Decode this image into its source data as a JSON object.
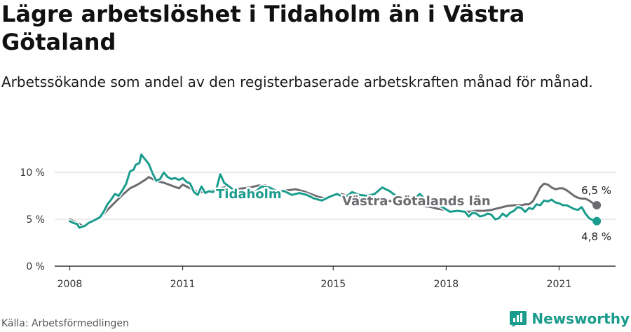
{
  "title": "Lägre arbetslöshet i Tidaholm än i Västra Götaland",
  "subtitle": "Arbetssökande som andel av den registerbaserade arbetskraften månad för månad.",
  "source": "Källa: Arbetsförmedlingen",
  "brand": "Newsworthy",
  "colors": {
    "tidaholm": "#1a9c8d",
    "vastra": "#6b6b70",
    "grid": "#dddddd",
    "axis": "#333333"
  },
  "chart_data": {
    "type": "line",
    "xlim": [
      2007.6,
      2022.5
    ],
    "ylim": [
      0,
      13
    ],
    "yticks": [
      0,
      5,
      10
    ],
    "ytick_labels": [
      "0 %",
      "5 %",
      "10 %"
    ],
    "xticks": [
      2008,
      2011,
      2015,
      2018,
      2021
    ],
    "xtick_labels": [
      "2008",
      "2011",
      "2015",
      "2018",
      "2021"
    ],
    "grid": "horizontal",
    "series": [
      {
        "name": "Tidaholm",
        "color": "#1a9c8d",
        "end_label": "4,8 %",
        "points": [
          [
            2008.0,
            4.8
          ],
          [
            2008.1,
            4.6
          ],
          [
            2008.2,
            4.5
          ],
          [
            2008.25,
            4.1
          ],
          [
            2008.4,
            4.3
          ],
          [
            2008.5,
            4.6
          ],
          [
            2008.6,
            4.8
          ],
          [
            2008.8,
            5.2
          ],
          [
            2008.9,
            5.8
          ],
          [
            2009.0,
            6.6
          ],
          [
            2009.1,
            7.1
          ],
          [
            2009.2,
            7.7
          ],
          [
            2009.3,
            7.5
          ],
          [
            2009.4,
            8.1
          ],
          [
            2009.5,
            8.8
          ],
          [
            2009.6,
            10.1
          ],
          [
            2009.7,
            10.3
          ],
          [
            2009.75,
            10.8
          ],
          [
            2009.85,
            11.0
          ],
          [
            2009.9,
            11.9
          ],
          [
            2010.0,
            11.4
          ],
          [
            2010.1,
            10.9
          ],
          [
            2010.2,
            9.9
          ],
          [
            2010.3,
            9.1
          ],
          [
            2010.4,
            9.3
          ],
          [
            2010.5,
            10.0
          ],
          [
            2010.6,
            9.5
          ],
          [
            2010.7,
            9.3
          ],
          [
            2010.8,
            9.4
          ],
          [
            2010.9,
            9.2
          ],
          [
            2011.0,
            9.4
          ],
          [
            2011.1,
            9.0
          ],
          [
            2011.2,
            8.8
          ],
          [
            2011.3,
            7.9
          ],
          [
            2011.4,
            7.6
          ],
          [
            2011.5,
            8.5
          ],
          [
            2011.6,
            7.8
          ],
          [
            2011.7,
            8.0
          ],
          [
            2011.8,
            7.9
          ],
          [
            2011.9,
            8.3
          ],
          [
            2012.0,
            9.8
          ],
          [
            2012.1,
            8.9
          ],
          [
            2012.2,
            8.6
          ],
          [
            2012.4,
            8.0
          ],
          [
            2012.6,
            7.9
          ],
          [
            2012.8,
            7.8
          ],
          [
            2012.95,
            8.0
          ],
          [
            2013.1,
            8.5
          ],
          [
            2013.3,
            8.4
          ],
          [
            2013.5,
            8.0
          ],
          [
            2013.7,
            8.0
          ],
          [
            2013.9,
            7.6
          ],
          [
            2014.1,
            7.8
          ],
          [
            2014.3,
            7.6
          ],
          [
            2014.5,
            7.2
          ],
          [
            2014.7,
            7.0
          ],
          [
            2014.9,
            7.4
          ],
          [
            2015.1,
            7.7
          ],
          [
            2015.3,
            7.3
          ],
          [
            2015.5,
            7.9
          ],
          [
            2015.7,
            7.6
          ],
          [
            2015.9,
            7.5
          ],
          [
            2016.1,
            7.7
          ],
          [
            2016.3,
            8.4
          ],
          [
            2016.5,
            8.0
          ],
          [
            2016.7,
            7.4
          ],
          [
            2016.9,
            7.1
          ],
          [
            2017.1,
            7.0
          ],
          [
            2017.3,
            7.7
          ],
          [
            2017.5,
            6.9
          ],
          [
            2017.7,
            6.6
          ],
          [
            2017.9,
            6.3
          ],
          [
            2018.1,
            5.8
          ],
          [
            2018.3,
            5.9
          ],
          [
            2018.5,
            5.8
          ],
          [
            2018.6,
            5.3
          ],
          [
            2018.7,
            5.7
          ],
          [
            2018.8,
            5.6
          ],
          [
            2018.9,
            5.3
          ],
          [
            2019.0,
            5.4
          ],
          [
            2019.1,
            5.6
          ],
          [
            2019.2,
            5.5
          ],
          [
            2019.3,
            5.0
          ],
          [
            2019.4,
            5.1
          ],
          [
            2019.5,
            5.6
          ],
          [
            2019.6,
            5.3
          ],
          [
            2019.7,
            5.7
          ],
          [
            2019.8,
            5.9
          ],
          [
            2019.9,
            6.3
          ],
          [
            2020.0,
            6.2
          ],
          [
            2020.1,
            5.8
          ],
          [
            2020.2,
            6.2
          ],
          [
            2020.3,
            6.1
          ],
          [
            2020.4,
            6.6
          ],
          [
            2020.5,
            6.5
          ],
          [
            2020.6,
            7.0
          ],
          [
            2020.7,
            6.9
          ],
          [
            2020.8,
            7.1
          ],
          [
            2020.9,
            6.8
          ],
          [
            2021.0,
            6.7
          ],
          [
            2021.1,
            6.5
          ],
          [
            2021.2,
            6.5
          ],
          [
            2021.3,
            6.3
          ],
          [
            2021.4,
            6.1
          ],
          [
            2021.5,
            6.0
          ],
          [
            2021.6,
            6.3
          ],
          [
            2021.7,
            5.6
          ],
          [
            2021.8,
            5.1
          ],
          [
            2021.9,
            4.9
          ],
          [
            2022.0,
            4.8
          ]
        ]
      },
      {
        "name": "Västra Götalands län",
        "color": "#6b6b70",
        "end_label": "6,5 %",
        "points": [
          [
            2008.0,
            5.0
          ],
          [
            2008.2,
            4.6
          ],
          [
            2008.35,
            4.3
          ],
          [
            2008.5,
            4.6
          ],
          [
            2008.8,
            5.1
          ],
          [
            2009.0,
            6.0
          ],
          [
            2009.2,
            6.8
          ],
          [
            2009.4,
            7.6
          ],
          [
            2009.6,
            8.3
          ],
          [
            2009.8,
            8.7
          ],
          [
            2010.0,
            9.2
          ],
          [
            2010.1,
            9.5
          ],
          [
            2010.3,
            9.1
          ],
          [
            2010.5,
            8.9
          ],
          [
            2010.7,
            8.6
          ],
          [
            2010.9,
            8.3
          ],
          [
            2011.0,
            8.7
          ],
          [
            2011.2,
            8.3
          ],
          [
            2011.4,
            7.9
          ],
          [
            2011.6,
            7.9
          ],
          [
            2011.8,
            8.1
          ],
          [
            2012.0,
            8.3
          ],
          [
            2012.2,
            8.5
          ],
          [
            2012.4,
            8.2
          ],
          [
            2012.6,
            8.3
          ],
          [
            2012.8,
            8.4
          ],
          [
            2013.0,
            8.6
          ],
          [
            2013.2,
            8.6
          ],
          [
            2013.4,
            8.2
          ],
          [
            2013.6,
            8.0
          ],
          [
            2013.8,
            8.1
          ],
          [
            2014.0,
            8.2
          ],
          [
            2014.2,
            8.0
          ],
          [
            2014.4,
            7.7
          ],
          [
            2014.6,
            7.4
          ],
          [
            2014.8,
            7.2
          ],
          [
            2015.0,
            7.5
          ],
          [
            2015.2,
            7.7
          ],
          [
            2015.4,
            7.5
          ],
          [
            2015.6,
            7.4
          ],
          [
            2015.8,
            7.3
          ],
          [
            2016.0,
            7.2
          ],
          [
            2016.2,
            7.1
          ],
          [
            2016.4,
            7.0
          ],
          [
            2016.6,
            6.9
          ],
          [
            2016.8,
            6.8
          ],
          [
            2017.0,
            6.7
          ],
          [
            2017.2,
            6.6
          ],
          [
            2017.4,
            6.4
          ],
          [
            2017.6,
            6.3
          ],
          [
            2017.8,
            6.1
          ],
          [
            2018.0,
            6.0
          ],
          [
            2018.2,
            5.9
          ],
          [
            2018.4,
            5.9
          ],
          [
            2018.6,
            5.8
          ],
          [
            2018.8,
            5.9
          ],
          [
            2019.0,
            5.9
          ],
          [
            2019.2,
            6.0
          ],
          [
            2019.4,
            6.2
          ],
          [
            2019.6,
            6.4
          ],
          [
            2019.8,
            6.5
          ],
          [
            2020.0,
            6.5
          ],
          [
            2020.1,
            6.6
          ],
          [
            2020.2,
            6.6
          ],
          [
            2020.3,
            6.9
          ],
          [
            2020.4,
            7.6
          ],
          [
            2020.5,
            8.4
          ],
          [
            2020.6,
            8.8
          ],
          [
            2020.7,
            8.7
          ],
          [
            2020.8,
            8.4
          ],
          [
            2020.9,
            8.2
          ],
          [
            2021.0,
            8.3
          ],
          [
            2021.1,
            8.3
          ],
          [
            2021.2,
            8.1
          ],
          [
            2021.3,
            7.8
          ],
          [
            2021.4,
            7.5
          ],
          [
            2021.5,
            7.3
          ],
          [
            2021.6,
            7.2
          ],
          [
            2021.7,
            7.2
          ],
          [
            2021.8,
            7.0
          ],
          [
            2021.9,
            6.7
          ],
          [
            2022.0,
            6.5
          ]
        ]
      }
    ]
  }
}
